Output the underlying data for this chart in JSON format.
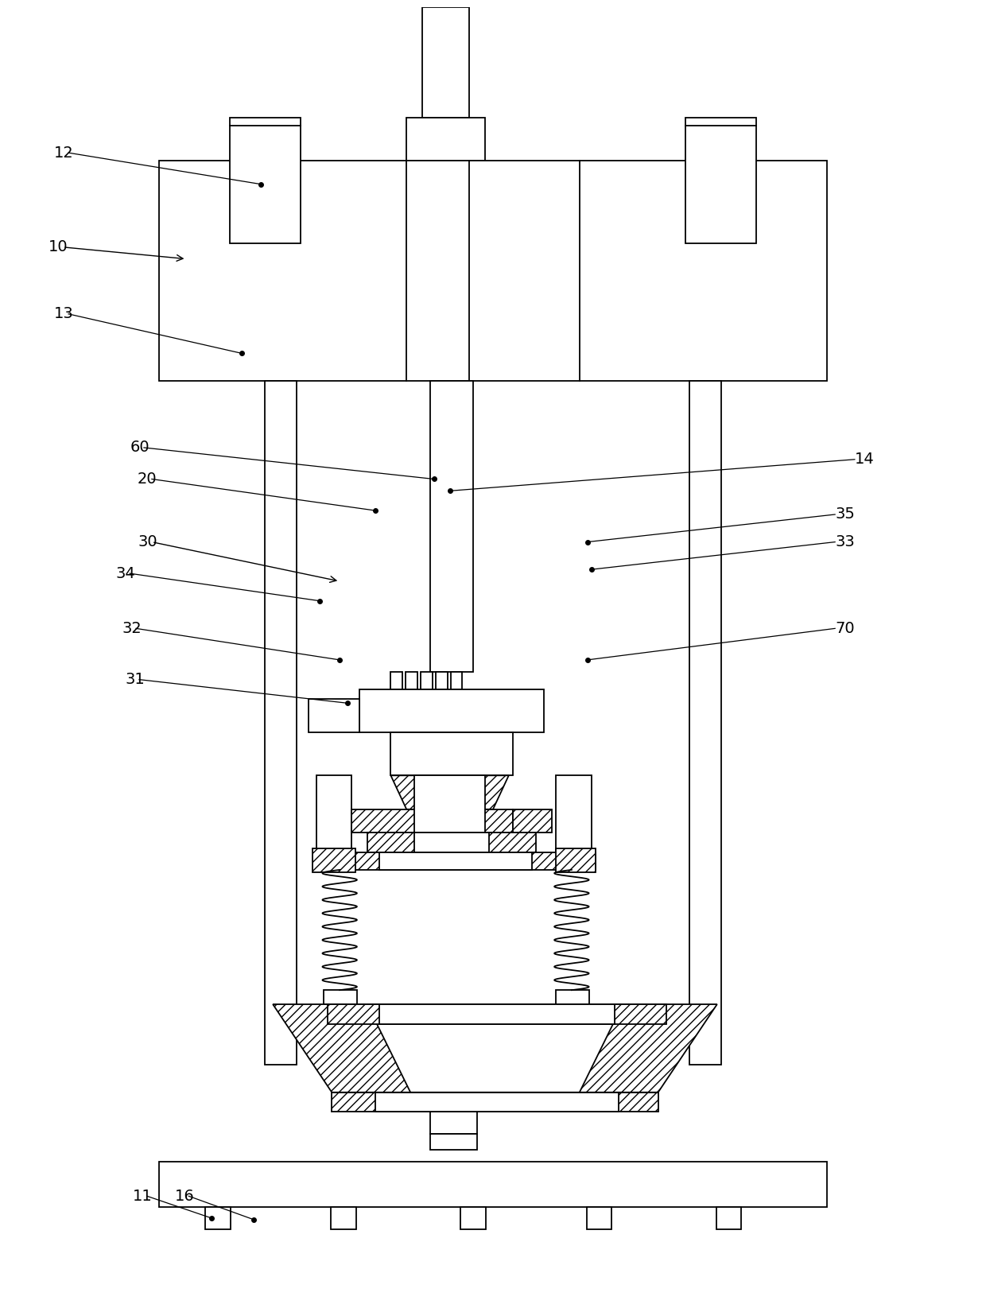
{
  "bg_color": "#ffffff",
  "line_color": "#000000",
  "fig_width": 12.4,
  "fig_height": 16.45,
  "lw": 1.3
}
